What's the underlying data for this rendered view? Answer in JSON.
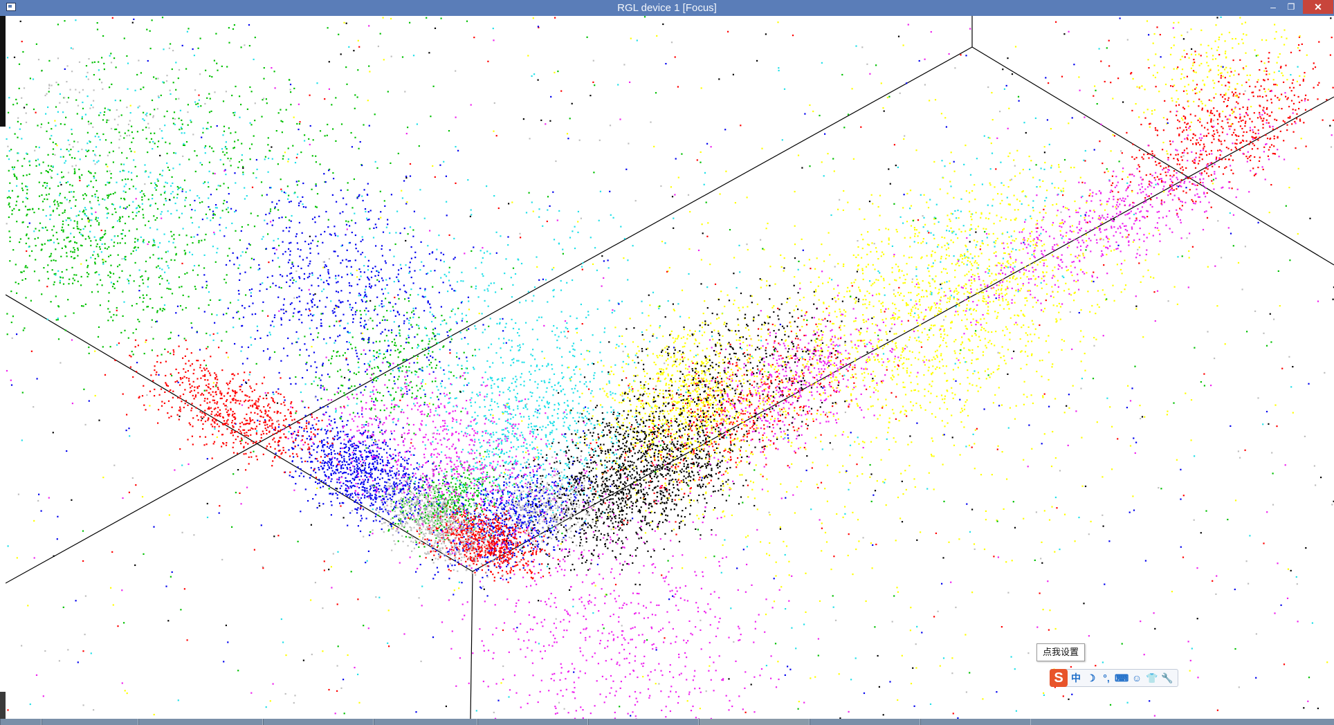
{
  "window": {
    "title": "RGL device 1 [Focus]",
    "minimize_glyph": "–",
    "restore_glyph": "❐",
    "close_glyph": "✕"
  },
  "colors": {
    "titlebar": "#5a7db8",
    "black": "#000000",
    "red": "#ff0000",
    "green": "#00c000",
    "blue": "#0000ee",
    "cyan": "#22e0e8",
    "magenta": "#ee22ee",
    "yellow": "#ffff00",
    "gray": "#bebebe"
  },
  "scene": {
    "kind": "3D scatter point cloud",
    "point_color_order": [
      "black",
      "red",
      "green",
      "blue",
      "cyan",
      "magenta",
      "yellow",
      "gray"
    ]
  },
  "ime": {
    "tooltip": "点我设置",
    "logo": "S",
    "items": [
      {
        "name": "chinese-mode-icon",
        "glyph": "中"
      },
      {
        "name": "moon-icon",
        "glyph": "☽"
      },
      {
        "name": "punctuation-icon",
        "glyph": "°,"
      },
      {
        "name": "keyboard-icon",
        "glyph": "⌨"
      },
      {
        "name": "user-icon",
        "glyph": "☺"
      },
      {
        "name": "skin-icon",
        "glyph": "👕"
      },
      {
        "name": "settings-wrench-icon",
        "glyph": "🔧"
      }
    ]
  }
}
